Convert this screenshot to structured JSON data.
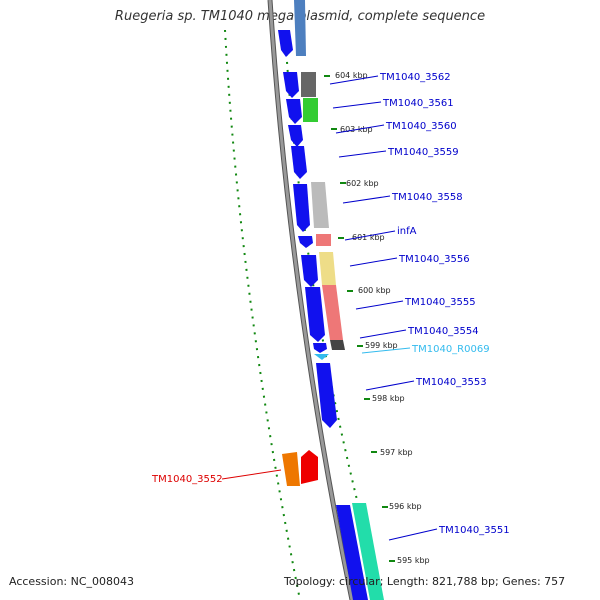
{
  "title": "Ruegeria sp. TM1040 mega plasmid, complete sequence",
  "accession_text": "Accession: NC_008043",
  "topology_text": "Topology: circular; Length: 821,788 bp; Genes: 757",
  "kbp_labels": [
    "604 kbp",
    "603 kbp",
    "602 kbp",
    "601 kbp",
    "600 kbp",
    "599 kbp",
    "598 kbp",
    "597 kbp",
    "596 kbp",
    "595 kbp"
  ],
  "genes": [
    {
      "label": "TM1040_3562",
      "color": "#0000cc"
    },
    {
      "label": "TM1040_3561",
      "color": "#0000cc"
    },
    {
      "label": "TM1040_3560",
      "color": "#0000cc"
    },
    {
      "label": "TM1040_3559",
      "color": "#0000cc"
    },
    {
      "label": "TM1040_3558",
      "color": "#0000cc"
    },
    {
      "label": "infA",
      "color": "#0000cc"
    },
    {
      "label": "TM1040_3556",
      "color": "#0000cc"
    },
    {
      "label": "TM1040_3555",
      "color": "#0000cc"
    },
    {
      "label": "TM1040_3554",
      "color": "#0000cc"
    },
    {
      "label": "TM1040_R0069",
      "color": "#33bbee"
    },
    {
      "label": "TM1040_3553",
      "color": "#0000cc"
    },
    {
      "label": "TM1040_3552",
      "color": "#dd0000"
    },
    {
      "label": "TM1040_3551",
      "color": "#0000cc"
    }
  ]
}
